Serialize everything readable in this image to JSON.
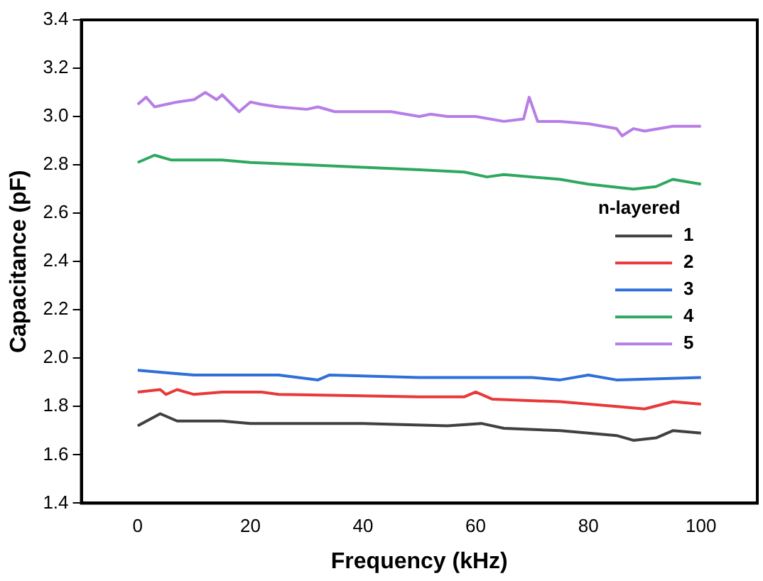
{
  "chart_data": {
    "type": "line",
    "xlabel": "Frequency (kHz)",
    "ylabel": "Capacitance (pF)",
    "legend_title": "n-layered",
    "legend": "right",
    "grid": false,
    "marker": "none",
    "line_style": "solid",
    "xlim": [
      -10,
      110
    ],
    "xticks": [
      0,
      20,
      40,
      60,
      80,
      100
    ],
    "ylim": [
      1.4,
      3.4
    ],
    "yticks": [
      1.4,
      1.6,
      1.8,
      {
        "value": 2,
        "label": "2.0"
      },
      2.2,
      2.4,
      2.6,
      2.8,
      {
        "value": 3,
        "label": "3.0"
      },
      3.2,
      3.4
    ],
    "series": [
      {
        "name": "1",
        "color": "#404040",
        "x": [
          0,
          4,
          7,
          15,
          20,
          40,
          55,
          61,
          65,
          75,
          85,
          88,
          92,
          95,
          100
        ],
        "values": [
          1.72,
          1.77,
          1.74,
          1.74,
          1.73,
          1.73,
          1.72,
          1.73,
          1.71,
          1.7,
          1.68,
          1.66,
          1.67,
          1.7,
          1.69
        ]
      },
      {
        "name": "2",
        "color": "#e8393a",
        "x": [
          0,
          4,
          5,
          7,
          10,
          15,
          22,
          25,
          50,
          58,
          60,
          63,
          75,
          85,
          90,
          95,
          100
        ],
        "values": [
          1.86,
          1.87,
          1.85,
          1.87,
          1.85,
          1.86,
          1.86,
          1.85,
          1.84,
          1.84,
          1.86,
          1.83,
          1.82,
          1.8,
          1.79,
          1.82,
          1.81
        ]
      },
      {
        "name": "3",
        "color": "#2e6fd8",
        "x": [
          0,
          5,
          10,
          25,
          32,
          34,
          50,
          70,
          75,
          80,
          85,
          100
        ],
        "values": [
          1.95,
          1.94,
          1.93,
          1.93,
          1.91,
          1.93,
          1.92,
          1.92,
          1.91,
          1.93,
          1.91,
          1.92
        ]
      },
      {
        "name": "4",
        "color": "#2fa85f",
        "x": [
          0,
          3,
          6,
          15,
          20,
          30,
          40,
          50,
          58,
          62,
          65,
          75,
          80,
          88,
          92,
          95,
          100
        ],
        "values": [
          2.81,
          2.84,
          2.82,
          2.82,
          2.81,
          2.8,
          2.79,
          2.78,
          2.77,
          2.75,
          2.76,
          2.74,
          2.72,
          2.7,
          2.71,
          2.74,
          2.72
        ]
      },
      {
        "name": "5",
        "color": "#b67ee6",
        "x": [
          0,
          1.5,
          3,
          5,
          7,
          10,
          12,
          14,
          15,
          18,
          20,
          22,
          25,
          30,
          32,
          35,
          45,
          50,
          52,
          55,
          60,
          65,
          68.5,
          69.5,
          71,
          75,
          80,
          85,
          86,
          88,
          90,
          95,
          100
        ],
        "values": [
          3.05,
          3.08,
          3.04,
          3.05,
          3.06,
          3.07,
          3.1,
          3.07,
          3.09,
          3.02,
          3.06,
          3.05,
          3.04,
          3.03,
          3.04,
          3.02,
          3.02,
          3.0,
          3.01,
          3.0,
          3.0,
          2.98,
          2.99,
          3.08,
          2.98,
          2.98,
          2.97,
          2.95,
          2.92,
          2.95,
          2.94,
          2.96,
          2.96
        ]
      }
    ]
  }
}
